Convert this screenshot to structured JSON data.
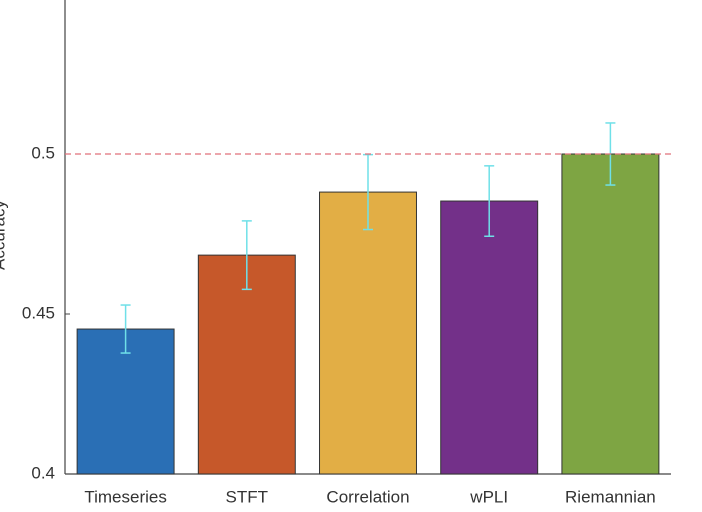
{
  "chart_data": {
    "type": "bar",
    "y_label": "Accuracy",
    "categories": [
      "Timeseries",
      "STFT",
      "Correlation",
      "wPLI",
      "Riemannian"
    ],
    "values": [
      0.4453,
      0.4684,
      0.4881,
      0.4853,
      0.5
    ],
    "errors": [
      0.0075,
      0.0107,
      0.0117,
      0.011,
      0.0097
    ],
    "colors": [
      "#2a6fb5",
      "#c6582a",
      "#e2ae45",
      "#733089",
      "#7ea543"
    ],
    "error_color": "#6fe0e8",
    "reference_line": 0.5,
    "reference_color": "#e0707a",
    "ylim": [
      0.4,
      0.55
    ],
    "yticks": [
      0.4,
      0.45,
      0.5,
      0.55
    ],
    "grid": false
  }
}
